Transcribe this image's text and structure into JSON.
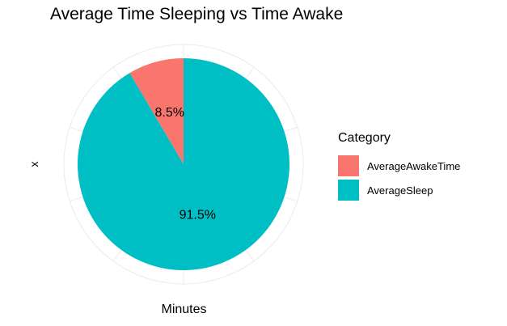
{
  "chart_data": {
    "type": "pie",
    "title": "Average Time Sleeping vs Time Awake",
    "xlabel": "Minutes",
    "ylabel": "x",
    "legend_title": "Category",
    "legend_position": "right",
    "grid": true,
    "slices": [
      {
        "name": "AverageAwakeTime",
        "value": 8.5,
        "label": "8.5%",
        "color": "#F8766D"
      },
      {
        "name": "AverageSleep",
        "value": 91.5,
        "label": "91.5%",
        "color": "#00BFC4"
      }
    ]
  }
}
